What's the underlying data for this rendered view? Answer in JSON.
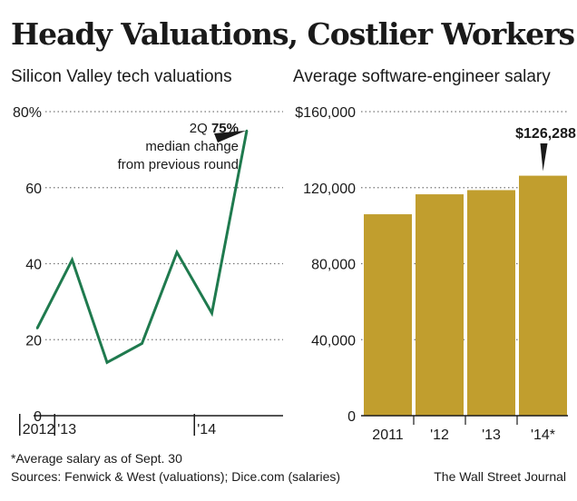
{
  "title": "Heady Valuations, Costlier Workers",
  "chart_data": [
    {
      "type": "line",
      "title": "Silicon Valley tech valuations",
      "xlabel": "",
      "ylabel": "",
      "x": [
        0,
        1,
        2,
        3,
        4,
        5,
        6
      ],
      "values": [
        23,
        41,
        14,
        19,
        43,
        27,
        75
      ],
      "ylim": [
        0,
        80
      ],
      "yticks": [
        0,
        20,
        40,
        60,
        80
      ],
      "ytick_labels": [
        "0",
        "20",
        "40",
        "60",
        "80%"
      ],
      "xtick_labels": [
        {
          "label": "2012",
          "pos": -0.5
        },
        {
          "label": "'13",
          "pos": 0.5
        },
        {
          "label": "'14",
          "pos": 4.5
        }
      ],
      "line_color": "#1f7a4e",
      "annotation": {
        "prefix": "2Q ",
        "value": "75%",
        "line2": "median change",
        "line3": "from previous round"
      },
      "grid": true
    },
    {
      "type": "bar",
      "title": "Average software-engineer salary",
      "categories": [
        "2011",
        "'12",
        "'13",
        "'14*"
      ],
      "values": [
        106000,
        116500,
        118700,
        126288
      ],
      "ylim": [
        0,
        160000
      ],
      "yticks": [
        0,
        40000,
        80000,
        120000,
        160000
      ],
      "ytick_labels": [
        "0",
        "40,000",
        "80,000",
        "120,000",
        "$160,000"
      ],
      "bar_color": "#c19e2e",
      "callout": "$126,288",
      "grid": true
    }
  ],
  "footnote": "*Average salary as of Sept. 30",
  "sources": "Sources: Fenwick & West (valuations); Dice.com (salaries)",
  "credit": "The Wall Street Journal"
}
